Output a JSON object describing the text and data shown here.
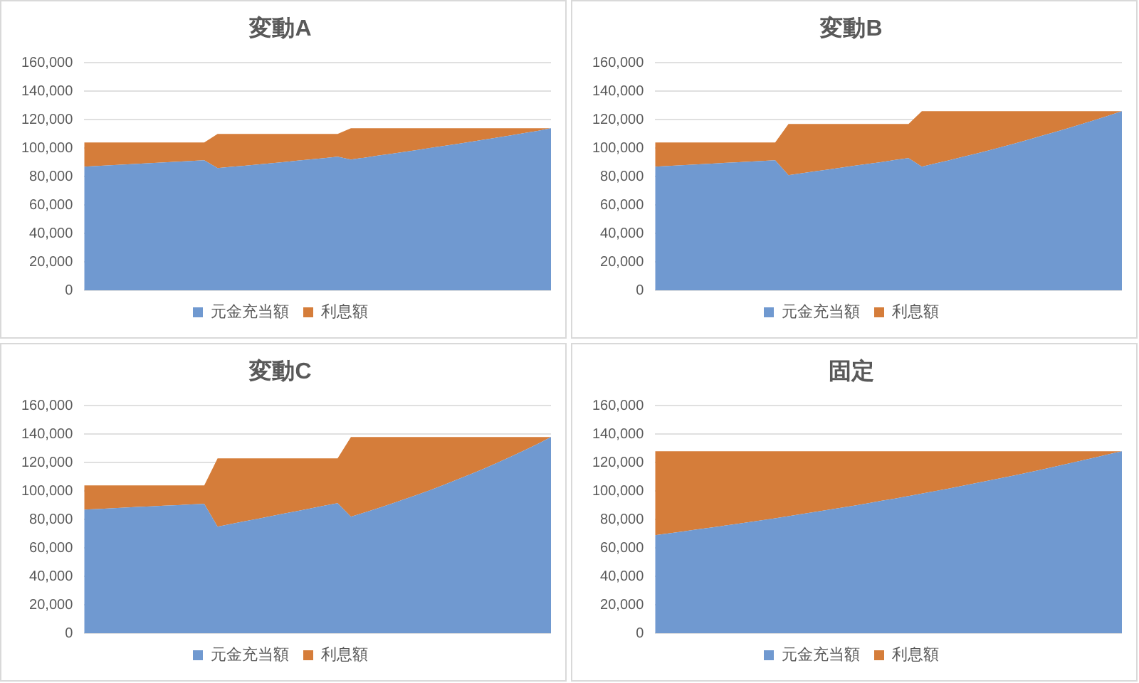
{
  "chart_data": [
    {
      "type": "area",
      "title": "変動A",
      "stacked": true,
      "grid": "y",
      "legend": "bottom",
      "categories": [
        null,
        null,
        null,
        null,
        null,
        null,
        null,
        null,
        null,
        null,
        null,
        null,
        null,
        null,
        null,
        null,
        null,
        null,
        null,
        null,
        null,
        null,
        null,
        null,
        null,
        null,
        null,
        null,
        null,
        null,
        null,
        null,
        null,
        null,
        null,
        null
      ],
      "ylim": [
        0,
        160000
      ],
      "yticks": [
        {
          "value": 0,
          "label": "0"
        },
        {
          "value": 20000,
          "label": "20,000"
        },
        {
          "value": 40000,
          "label": "40,000"
        },
        {
          "value": 60000,
          "label": "60,000"
        },
        {
          "value": 80000,
          "label": "80,000"
        },
        {
          "value": 100000,
          "label": "100,000"
        },
        {
          "value": 120000,
          "label": "120,000"
        },
        {
          "value": 140000,
          "label": "140,000"
        },
        {
          "value": 160000,
          "label": "160,000"
        }
      ],
      "series": [
        {
          "name": "元金充当額",
          "color": "#7099d0",
          "values": [
            87000,
            87500,
            88000,
            88500,
            89000,
            89500,
            90000,
            90500,
            91000,
            91500,
            86000,
            86800,
            87600,
            88500,
            89400,
            90300,
            91200,
            92100,
            93000,
            94000,
            92000,
            93300,
            94700,
            96000,
            97400,
            98800,
            100200,
            101600,
            103000,
            104500,
            106000,
            107500,
            109000,
            110600,
            112200,
            114000
          ]
        },
        {
          "name": "利息額",
          "color": "#d57d3a",
          "values": [
            17000,
            16500,
            16000,
            15500,
            15000,
            14500,
            14000,
            13500,
            13000,
            12500,
            24000,
            23200,
            22400,
            21500,
            20600,
            19700,
            18800,
            17900,
            17000,
            16000,
            22000,
            20700,
            19300,
            18000,
            16600,
            15200,
            13800,
            12400,
            11000,
            9500,
            8000,
            6500,
            5000,
            3400,
            1800,
            0
          ]
        }
      ]
    },
    {
      "type": "area",
      "title": "変動B",
      "stacked": true,
      "grid": "y",
      "legend": "bottom",
      "categories": [
        null,
        null,
        null,
        null,
        null,
        null,
        null,
        null,
        null,
        null,
        null,
        null,
        null,
        null,
        null,
        null,
        null,
        null,
        null,
        null,
        null,
        null,
        null,
        null,
        null,
        null,
        null,
        null,
        null,
        null,
        null,
        null,
        null,
        null,
        null,
        null
      ],
      "ylim": [
        0,
        160000
      ],
      "yticks": [
        {
          "value": 0,
          "label": "0"
        },
        {
          "value": 20000,
          "label": "20,000"
        },
        {
          "value": 40000,
          "label": "40,000"
        },
        {
          "value": 60000,
          "label": "60,000"
        },
        {
          "value": 80000,
          "label": "80,000"
        },
        {
          "value": 100000,
          "label": "100,000"
        },
        {
          "value": 120000,
          "label": "120,000"
        },
        {
          "value": 140000,
          "label": "140,000"
        },
        {
          "value": 160000,
          "label": "160,000"
        }
      ],
      "series": [
        {
          "name": "元金充当額",
          "color": "#7099d0",
          "values": [
            87000,
            87500,
            88000,
            88500,
            89000,
            89500,
            90000,
            90500,
            91000,
            91500,
            81000,
            82300,
            83700,
            85000,
            86300,
            87700,
            89000,
            90300,
            91700,
            93000,
            87000,
            89200,
            91400,
            93700,
            96000,
            98400,
            100900,
            103400,
            106000,
            108700,
            111400,
            114200,
            117000,
            119900,
            122900,
            126000
          ]
        },
        {
          "name": "利息額",
          "color": "#d57d3a",
          "values": [
            17000,
            16500,
            16000,
            15500,
            15000,
            14500,
            14000,
            13500,
            13000,
            12500,
            36000,
            34700,
            33300,
            32000,
            30700,
            29300,
            28000,
            26700,
            25300,
            24000,
            39000,
            36800,
            34600,
            32300,
            30000,
            27600,
            25100,
            22600,
            20000,
            17300,
            14600,
            11800,
            9000,
            6100,
            3100,
            0
          ]
        }
      ]
    },
    {
      "type": "area",
      "title": "変動C",
      "stacked": true,
      "grid": "y",
      "legend": "bottom",
      "categories": [
        null,
        null,
        null,
        null,
        null,
        null,
        null,
        null,
        null,
        null,
        null,
        null,
        null,
        null,
        null,
        null,
        null,
        null,
        null,
        null,
        null,
        null,
        null,
        null,
        null,
        null,
        null,
        null,
        null,
        null,
        null,
        null,
        null,
        null,
        null,
        null
      ],
      "ylim": [
        0,
        160000
      ],
      "yticks": [
        {
          "value": 0,
          "label": "0"
        },
        {
          "value": 20000,
          "label": "20,000"
        },
        {
          "value": 40000,
          "label": "40,000"
        },
        {
          "value": 60000,
          "label": "60,000"
        },
        {
          "value": 80000,
          "label": "80,000"
        },
        {
          "value": 100000,
          "label": "100,000"
        },
        {
          "value": 120000,
          "label": "120,000"
        },
        {
          "value": 140000,
          "label": "140,000"
        },
        {
          "value": 160000,
          "label": "160,000"
        }
      ],
      "series": [
        {
          "name": "元金充当額",
          "color": "#7099d0",
          "values": [
            87000,
            87400,
            87900,
            88300,
            88800,
            89200,
            89700,
            90100,
            90600,
            91000,
            75000,
            76800,
            78700,
            80500,
            82300,
            84200,
            86000,
            87800,
            89700,
            91500,
            82000,
            84900,
            87900,
            91000,
            94200,
            97500,
            100900,
            104500,
            108200,
            112000,
            115900,
            120000,
            124300,
            128600,
            133200,
            138000
          ]
        },
        {
          "name": "利息額",
          "color": "#d57d3a",
          "values": [
            17000,
            16600,
            16100,
            15700,
            15200,
            14800,
            14300,
            13900,
            13400,
            13000,
            48000,
            46200,
            44300,
            42500,
            40700,
            38800,
            37000,
            35200,
            33300,
            31500,
            56000,
            53100,
            50100,
            47000,
            43800,
            40500,
            37100,
            33500,
            29800,
            26000,
            22100,
            18000,
            13700,
            9400,
            4800,
            0
          ]
        }
      ]
    },
    {
      "type": "area",
      "title": "固定",
      "stacked": true,
      "grid": "y",
      "legend": "bottom",
      "categories": [
        null,
        null,
        null,
        null,
        null,
        null,
        null,
        null,
        null,
        null,
        null,
        null,
        null,
        null,
        null,
        null,
        null,
        null,
        null,
        null,
        null,
        null,
        null,
        null,
        null,
        null,
        null,
        null,
        null,
        null,
        null,
        null,
        null,
        null,
        null,
        null
      ],
      "ylim": [
        0,
        160000
      ],
      "yticks": [
        {
          "value": 0,
          "label": "0"
        },
        {
          "value": 20000,
          "label": "20,000"
        },
        {
          "value": 40000,
          "label": "40,000"
        },
        {
          "value": 60000,
          "label": "60,000"
        },
        {
          "value": 80000,
          "label": "80,000"
        },
        {
          "value": 100000,
          "label": "100,000"
        },
        {
          "value": 120000,
          "label": "120,000"
        },
        {
          "value": 140000,
          "label": "140,000"
        },
        {
          "value": 160000,
          "label": "160,000"
        }
      ],
      "series": [
        {
          "name": "元金充当額",
          "color": "#7099d0",
          "values": [
            69000,
            70200,
            71500,
            72800,
            74100,
            75400,
            76700,
            78100,
            79500,
            80900,
            82300,
            83800,
            85300,
            86800,
            88400,
            89900,
            91500,
            93200,
            94800,
            96500,
            98300,
            100000,
            101800,
            103600,
            105500,
            107400,
            109300,
            111200,
            113200,
            115200,
            117300,
            119400,
            121500,
            123700,
            125900,
            128000
          ]
        },
        {
          "name": "利息額",
          "color": "#d57d3a",
          "values": [
            59000,
            57800,
            56500,
            55200,
            53900,
            52600,
            51300,
            49900,
            48500,
            47100,
            45700,
            44200,
            42700,
            41200,
            39600,
            38100,
            36500,
            34800,
            33200,
            31500,
            29700,
            28000,
            26200,
            24400,
            22500,
            20600,
            18700,
            16800,
            14800,
            12800,
            10700,
            8600,
            6500,
            4300,
            2100,
            0
          ]
        }
      ]
    }
  ]
}
